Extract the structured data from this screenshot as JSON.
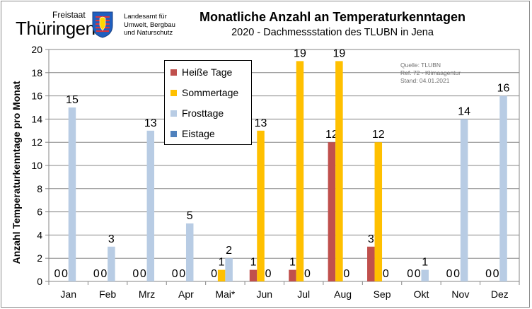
{
  "header": {
    "state_label": "Freistaat",
    "state_name": "Thüringen",
    "crest_icon": "thuringia-crest-icon",
    "agency_lines": [
      "Landesamt für",
      "Umwelt, Bergbau",
      "und Naturschutz"
    ],
    "title": "Monatliche Anzahl an Temperaturkenntagen",
    "subtitle": "2020 - Dachmessstation des TLUBN  in Jena"
  },
  "source_note": [
    "Quelle: TLUBN",
    "Ref. 72 - Klimaagentur",
    "Stand: 04.01.2021"
  ],
  "colors": {
    "Heiße Tage": "#c0504d",
    "Sommertage": "#ffc000",
    "Frosttage": "#b8cce4",
    "Eistage": "#4f81bd"
  },
  "chart_data": {
    "type": "bar",
    "categories": [
      "Jan",
      "Feb",
      "Mrz",
      "Apr",
      "Mai*",
      "Jun",
      "Jul",
      "Aug",
      "Sep",
      "Okt",
      "Nov",
      "Dez"
    ],
    "series": [
      {
        "name": "Heiße Tage",
        "values": [
          0,
          0,
          0,
          0,
          0,
          1,
          1,
          12,
          3,
          0,
          0,
          0
        ]
      },
      {
        "name": "Sommertage",
        "values": [
          0,
          0,
          0,
          0,
          1,
          13,
          19,
          19,
          12,
          0,
          0,
          0
        ]
      },
      {
        "name": "Frosttage",
        "values": [
          15,
          3,
          13,
          5,
          2,
          0,
          0,
          0,
          0,
          1,
          14,
          16
        ]
      },
      {
        "name": "Eistage",
        "values": [
          0,
          0,
          0,
          0,
          0,
          0,
          0,
          0,
          0,
          0,
          0,
          0
        ]
      }
    ],
    "data_labels": [
      [
        "0",
        "0",
        "15",
        ""
      ],
      [
        "0",
        "0",
        "3",
        ""
      ],
      [
        "0",
        "0",
        "13",
        ""
      ],
      [
        "0",
        "0",
        "5",
        ""
      ],
      [
        "0",
        "1",
        "2",
        ""
      ],
      [
        "1",
        "13",
        "0",
        ""
      ],
      [
        "1",
        "19",
        "0",
        ""
      ],
      [
        "12",
        "19",
        "0",
        ""
      ],
      [
        "3",
        "12",
        "0",
        ""
      ],
      [
        "0",
        "0",
        "1",
        ""
      ],
      [
        "0",
        "0",
        "14",
        ""
      ],
      [
        "0",
        "0",
        "16",
        ""
      ]
    ],
    "title": "Monatliche Anzahl an Temperaturkenntagen",
    "subtitle": "2020 - Dachmessstation des TLUBN  in Jena",
    "xlabel": "",
    "ylabel": "Anzahl Temperaturkenntage pro Monat",
    "ylim": [
      0,
      20
    ],
    "yticks": [
      0,
      2,
      4,
      6,
      8,
      10,
      12,
      14,
      16,
      18,
      20
    ],
    "grid": true,
    "legend_position": "top-left inside plot"
  }
}
